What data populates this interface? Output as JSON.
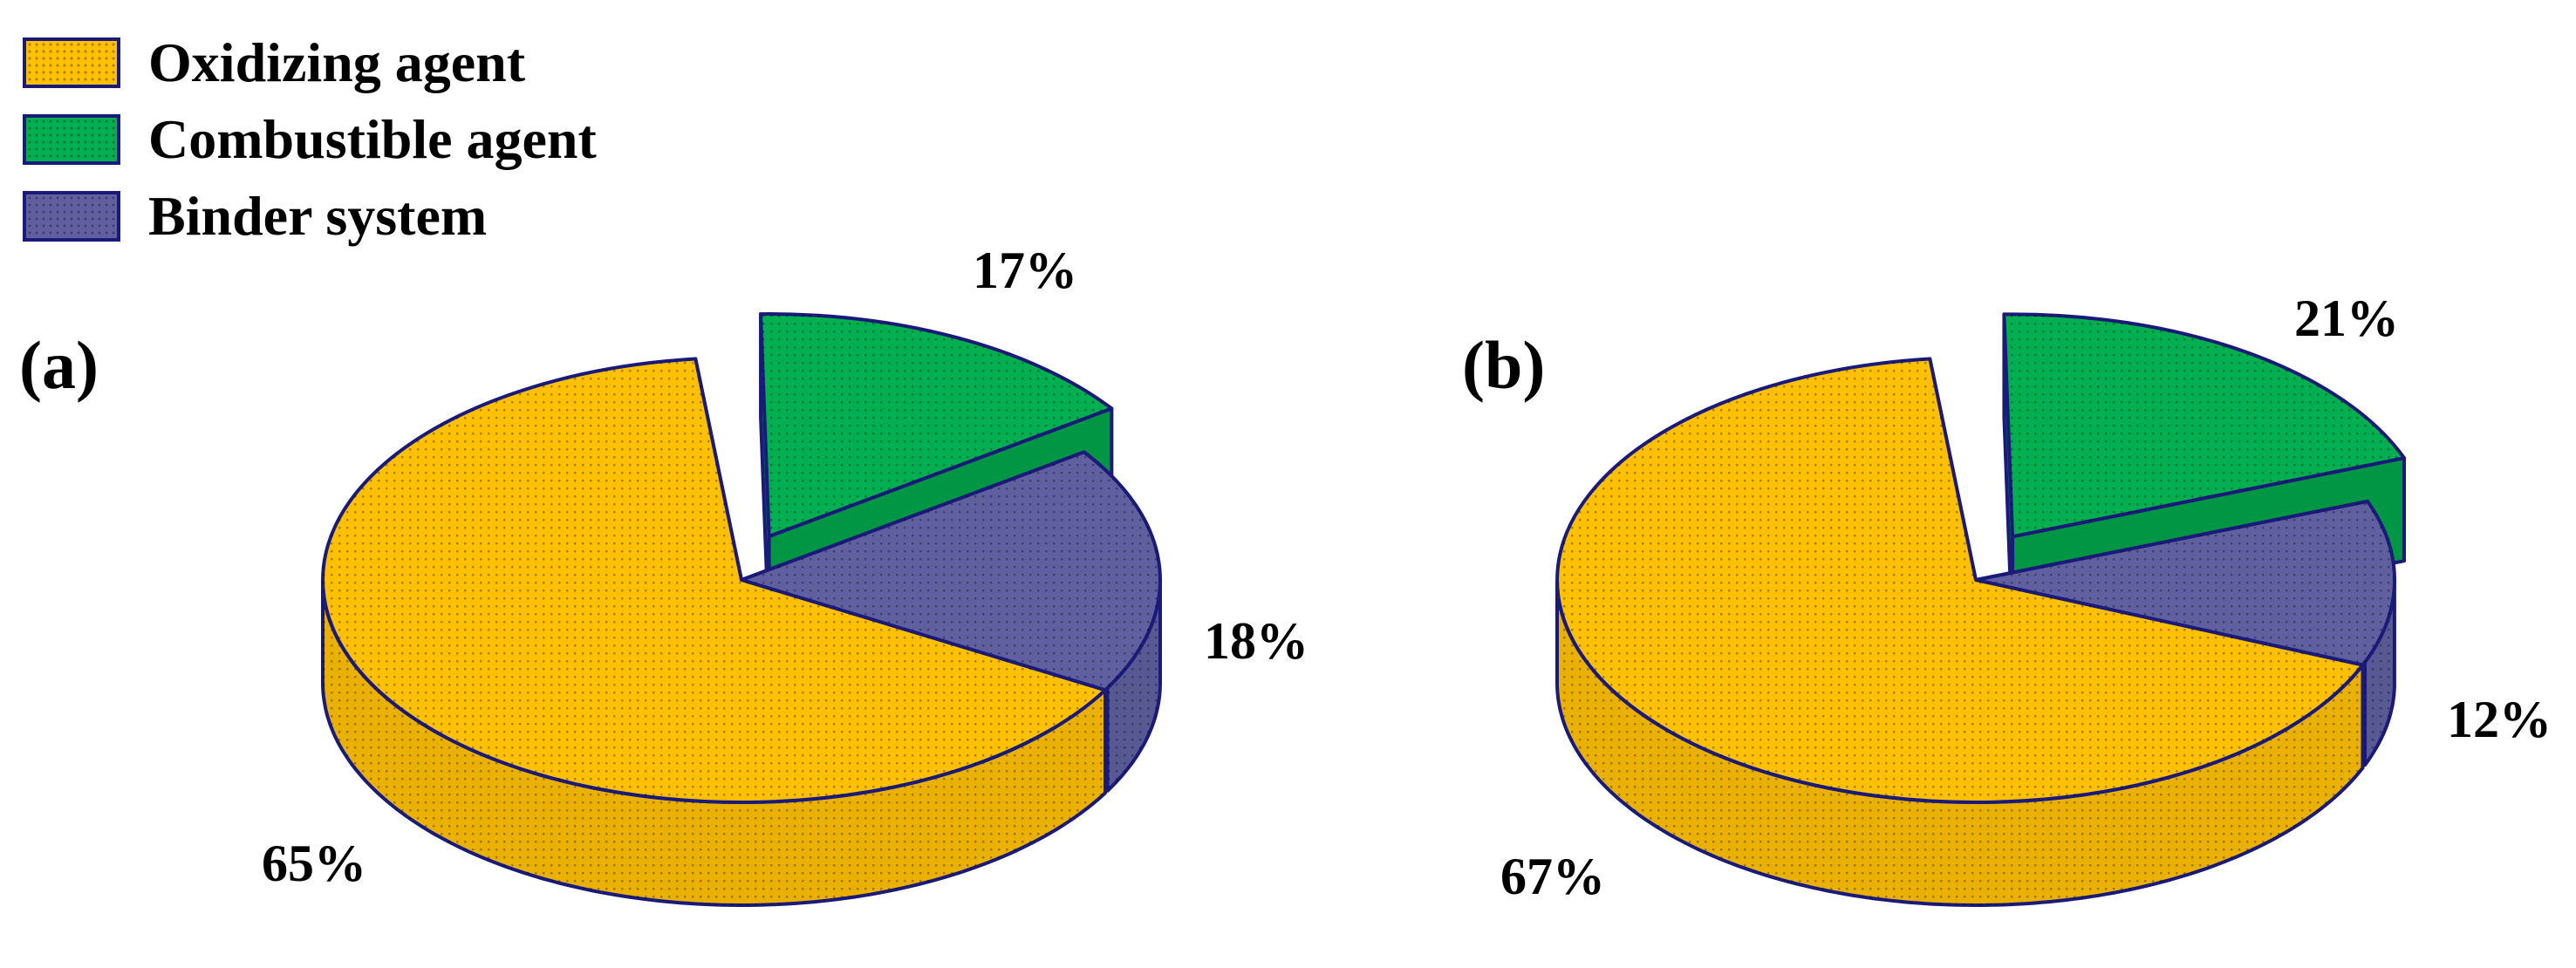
{
  "legend": [
    {
      "label": "Oxidizing agent",
      "color": "#FFC000"
    },
    {
      "label": "Combustible agent",
      "color": "#00B050"
    },
    {
      "label": "Binder system",
      "color": "#6060A0"
    }
  ],
  "panels": [
    {
      "label": "(a)"
    },
    {
      "label": "(b)"
    }
  ],
  "chart_data": [
    {
      "type": "pie",
      "panel": "(a)",
      "categories": [
        "Oxidizing agent",
        "Combustible agent",
        "Binder system"
      ],
      "values": [
        65,
        17,
        18
      ],
      "value_labels": [
        "65%",
        "17%",
        "18%"
      ],
      "exploded": [
        "Combustible agent"
      ],
      "legend_position": "top-left"
    },
    {
      "type": "pie",
      "panel": "(b)",
      "categories": [
        "Oxidizing agent",
        "Combustible agent",
        "Binder system"
      ],
      "values": [
        67,
        21,
        12
      ],
      "value_labels": [
        "67%",
        "21%",
        "12%"
      ],
      "exploded": [
        "Combustible agent"
      ],
      "legend_position": "top-left"
    }
  ]
}
